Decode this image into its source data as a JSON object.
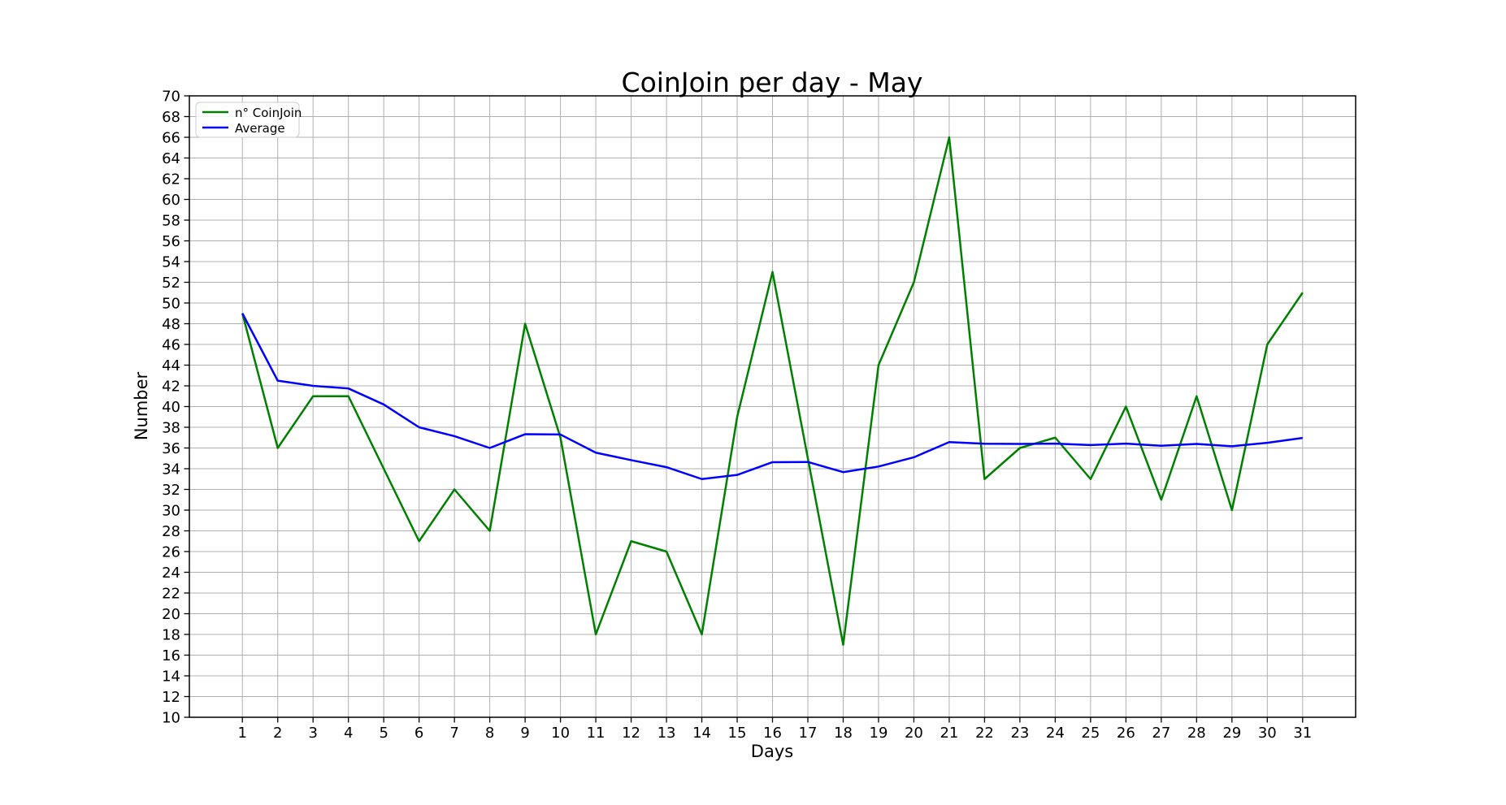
{
  "figure": {
    "background_color": "#ffffff",
    "grid_color": "#b0b0b0",
    "axis_color": "#000000",
    "tick_label_color": "#000000",
    "legend_border_color": "#cccccc",
    "legend_background": "#ffffff"
  },
  "chart_data": {
    "type": "line",
    "title": "CoinJoin per day - May",
    "xlabel": "Days",
    "ylabel": "Number",
    "x": [
      1,
      2,
      3,
      4,
      5,
      6,
      7,
      8,
      9,
      10,
      11,
      12,
      13,
      14,
      15,
      16,
      17,
      18,
      19,
      20,
      21,
      22,
      23,
      24,
      25,
      26,
      27,
      28,
      29,
      30,
      31
    ],
    "series": [
      {
        "name": "n° CoinJoin",
        "color": "#008000",
        "values": [
          49,
          36,
          41,
          41,
          34,
          27,
          32,
          28,
          48,
          37,
          18,
          27,
          26,
          18,
          39,
          53,
          35,
          17,
          44,
          52,
          66,
          33,
          36,
          37,
          33,
          40,
          31,
          41,
          30,
          46,
          51
        ]
      },
      {
        "name": "Average",
        "color": "#0000ff",
        "values": [
          49.0,
          42.5,
          42.0,
          41.75,
          40.2,
          38.0,
          37.14,
          36.0,
          37.33,
          37.3,
          35.55,
          34.83,
          34.15,
          33.0,
          33.4,
          34.63,
          34.65,
          33.67,
          34.21,
          35.1,
          36.57,
          36.41,
          36.39,
          36.42,
          36.28,
          36.42,
          36.22,
          36.39,
          36.17,
          36.5,
          36.97
        ]
      }
    ],
    "xlim": [
      -0.5,
      32.5
    ],
    "ylim": [
      10,
      70
    ],
    "ytick_step": 2,
    "grid": true,
    "legend": {
      "position": "upper-left"
    }
  }
}
